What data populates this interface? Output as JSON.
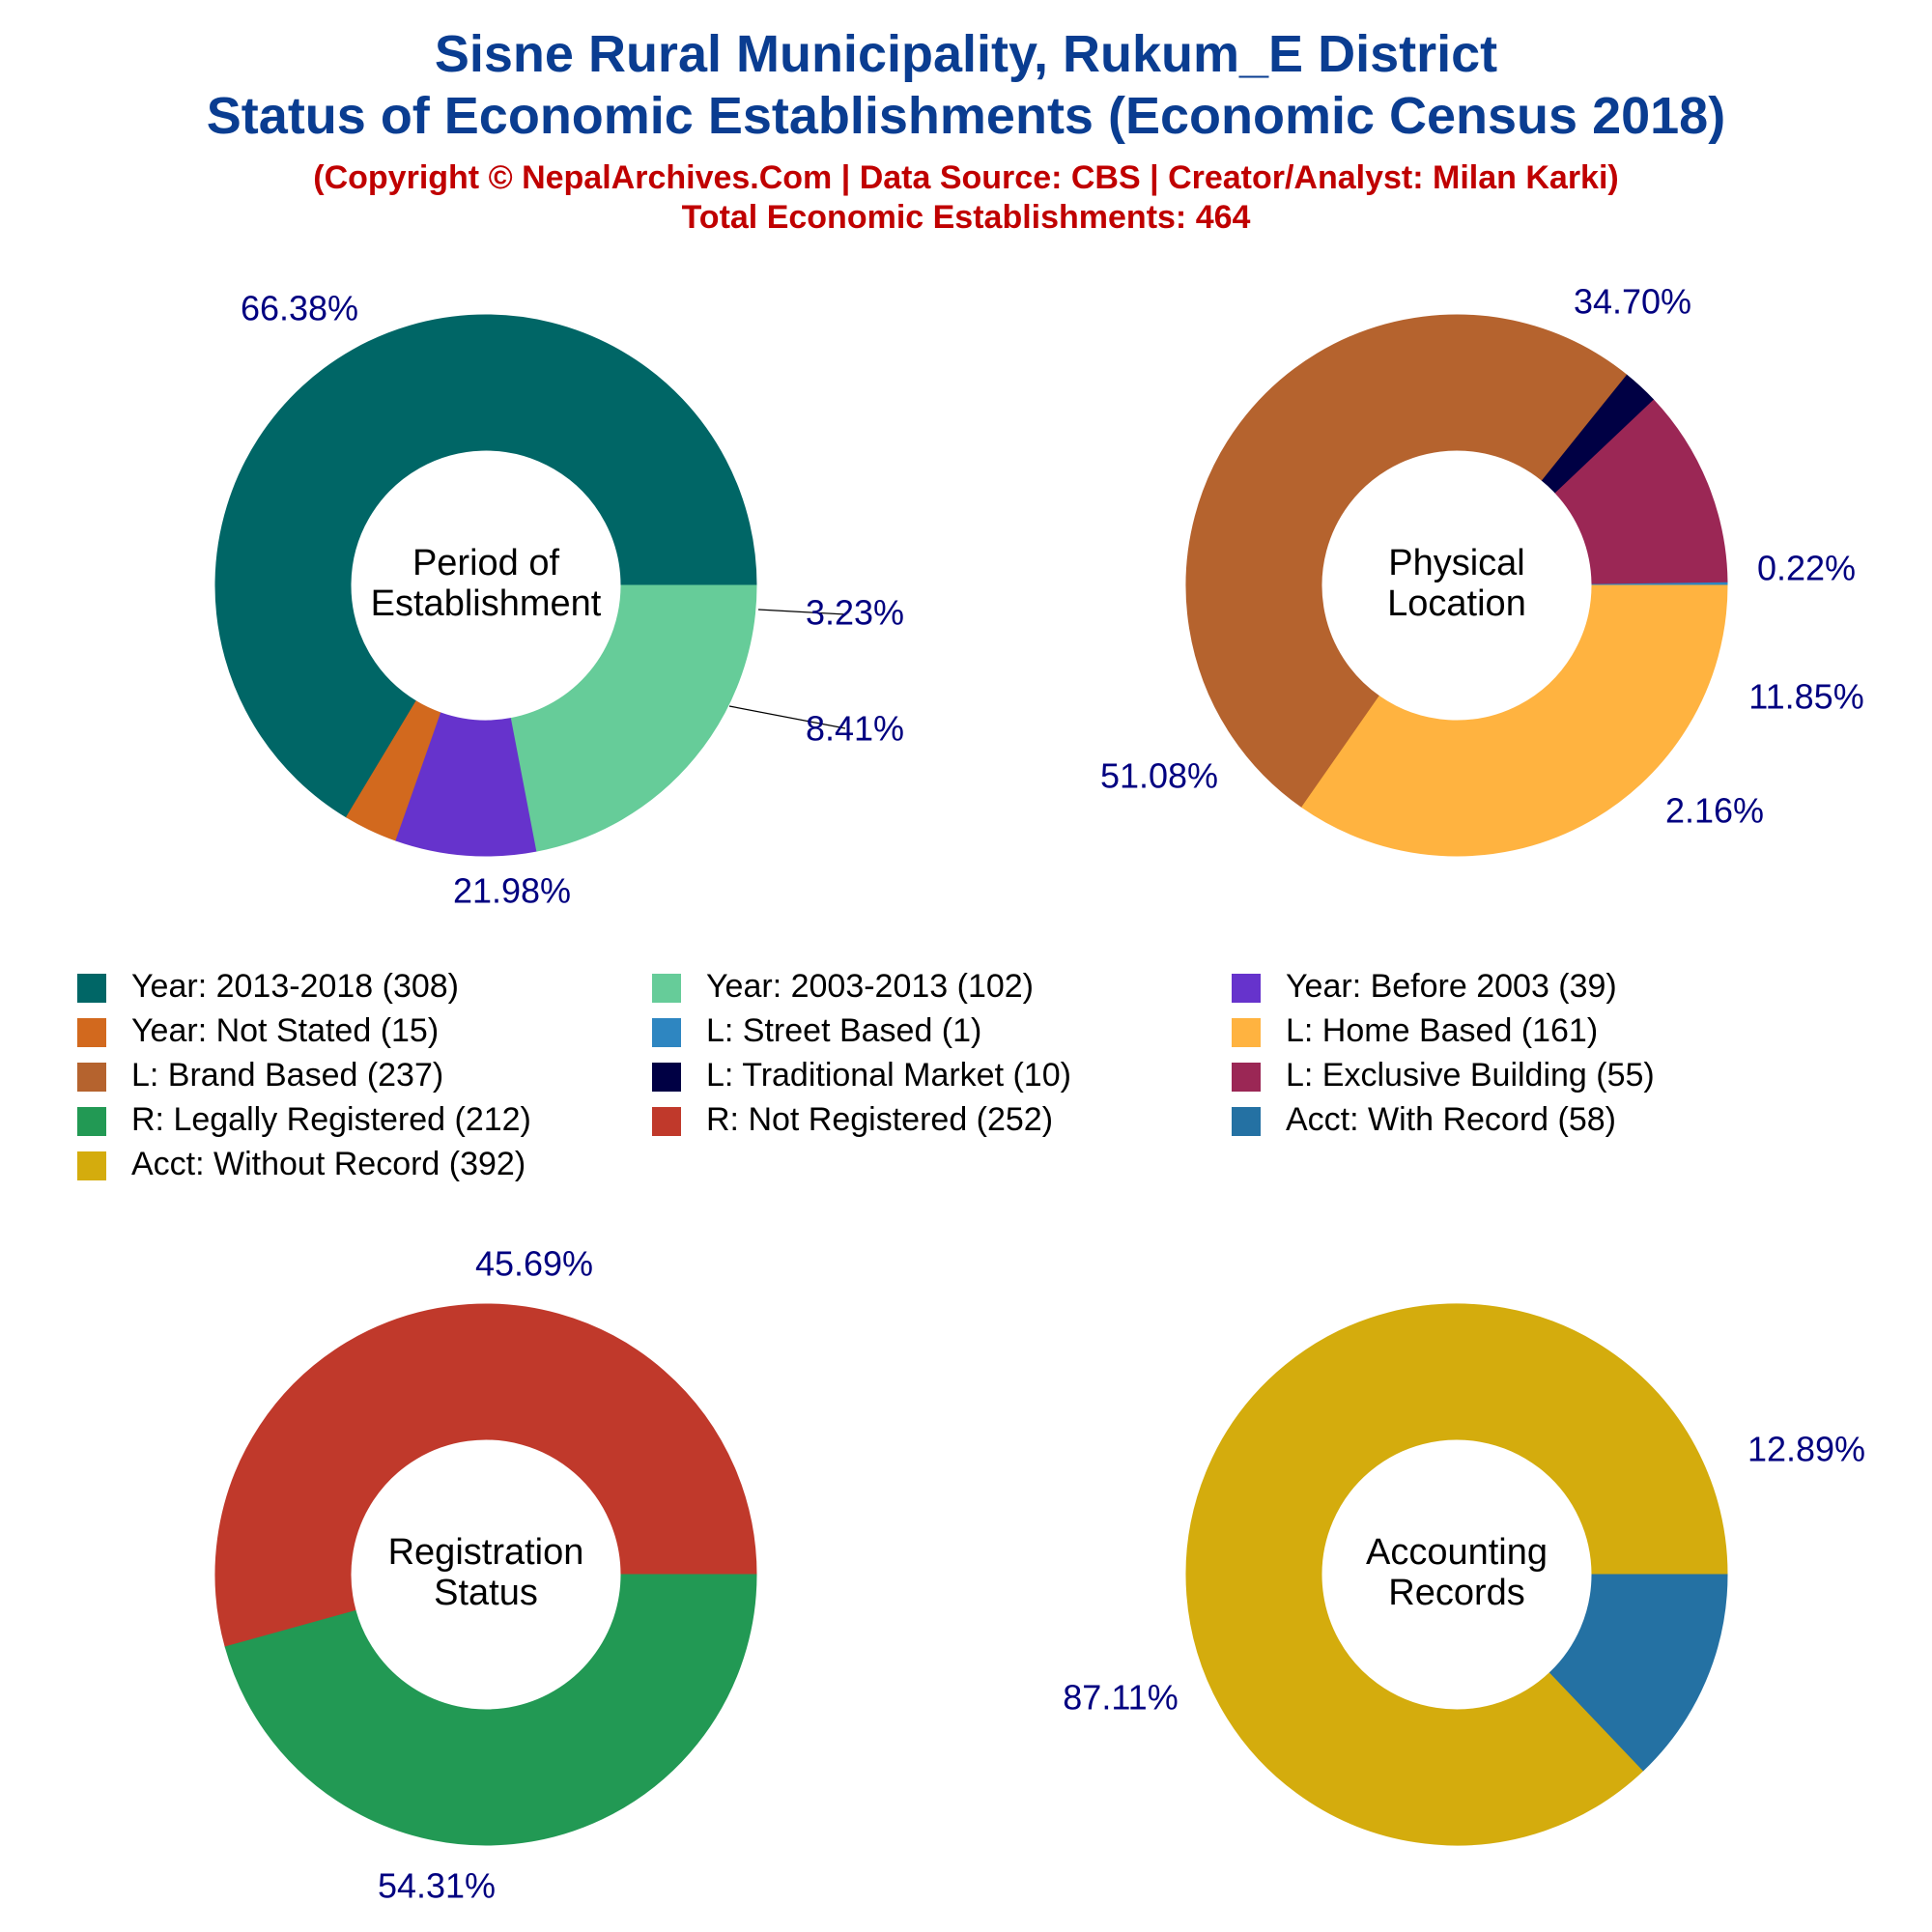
{
  "header": {
    "title_line1": "Sisne Rural Municipality, Rukum_E District",
    "title_line2": "Status of Economic Establishments (Economic Census 2018)",
    "subtitle_line1": "(Copyright © NepalArchives.Com | Data Source: CBS | Creator/Analyst: Milan Karki)",
    "subtitle_line2": "Total Economic Establishments: 464"
  },
  "colors": {
    "title": "#0a3d91",
    "subtitle": "#c00000",
    "percent_label": "#000080",
    "center_label": "#000000"
  },
  "chart_data": [
    {
      "type": "pie",
      "center_label": [
        "Period of",
        "Establishment"
      ],
      "slices": [
        {
          "legend": "Year: 2013-2018 (308)",
          "value": 308,
          "percent": "66.38%",
          "color": "#006666"
        },
        {
          "legend": "Year: Not Stated (15)",
          "value": 15,
          "percent": "3.23%",
          "color": "#d2691e"
        },
        {
          "legend": "Year: Before 2003 (39)",
          "value": 39,
          "percent": "8.41%",
          "color": "#6633cc"
        },
        {
          "legend": "Year: 2003-2013 (102)",
          "value": 102,
          "percent": "21.98%",
          "color": "#66cc99"
        }
      ]
    },
    {
      "type": "pie",
      "center_label": [
        "Physical",
        "Location"
      ],
      "slices": [
        {
          "legend": "L: Street Based (1)",
          "value": 1,
          "percent": "0.22%",
          "color": "#2e86c1"
        },
        {
          "legend": "L: Exclusive Building (55)",
          "value": 55,
          "percent": "11.85%",
          "color": "#9b2755"
        },
        {
          "legend": "L: Traditional Market (10)",
          "value": 10,
          "percent": "2.16%",
          "color": "#000044"
        },
        {
          "legend": "L: Brand Based (237)",
          "value": 237,
          "percent": "51.08%",
          "color": "#b5632e"
        },
        {
          "legend": "L: Home Based (161)",
          "value": 161,
          "percent": "34.70%",
          "color": "#ffb340"
        }
      ]
    },
    {
      "type": "pie",
      "center_label": [
        "Registration",
        "Status"
      ],
      "slices": [
        {
          "legend": "R: Not Registered (252)",
          "value": 252,
          "percent": "54.31%",
          "color": "#c0392b"
        },
        {
          "legend": "R: Legally Registered (212)",
          "value": 212,
          "percent": "45.69%",
          "color": "#229954"
        }
      ]
    },
    {
      "type": "pie",
      "center_label": [
        "Accounting",
        "Records"
      ],
      "slices": [
        {
          "legend": "Acct: Without Record (392)",
          "value": 392,
          "percent": "87.11%",
          "color": "#d4ac0d"
        },
        {
          "legend": "Acct: With Record (58)",
          "value": 58,
          "percent": "12.89%",
          "color": "#2471a3"
        }
      ]
    }
  ],
  "legend": [
    {
      "label": "Year: 2013-2018 (308)",
      "color": "#006666"
    },
    {
      "label": "Year: 2003-2013 (102)",
      "color": "#66cc99"
    },
    {
      "label": "Year: Before 2003 (39)",
      "color": "#6633cc"
    },
    {
      "label": "Year: Not Stated (15)",
      "color": "#d2691e"
    },
    {
      "label": "L: Street Based (1)",
      "color": "#2e86c1"
    },
    {
      "label": "L: Home Based (161)",
      "color": "#ffb340"
    },
    {
      "label": "L: Brand Based (237)",
      "color": "#b5632e"
    },
    {
      "label": "L: Traditional Market (10)",
      "color": "#000044"
    },
    {
      "label": "L: Exclusive Building (55)",
      "color": "#9b2755"
    },
    {
      "label": "R: Legally Registered (212)",
      "color": "#229954"
    },
    {
      "label": "R: Not Registered (252)",
      "color": "#c0392b"
    },
    {
      "label": "Acct: With Record (58)",
      "color": "#2471a3"
    },
    {
      "label": "Acct: Without Record (392)",
      "color": "#d4ac0d"
    }
  ]
}
